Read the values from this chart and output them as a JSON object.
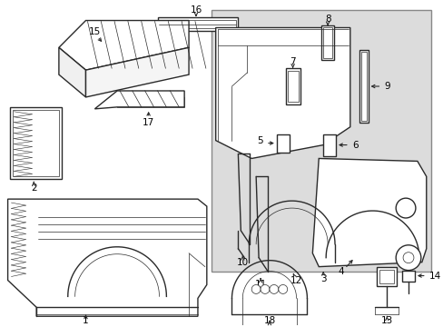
{
  "bg_color": "#ffffff",
  "panel_bg": "#dcdcdc",
  "line_color": "#2a2a2a",
  "fig_width": 4.89,
  "fig_height": 3.6,
  "dpi": 100
}
